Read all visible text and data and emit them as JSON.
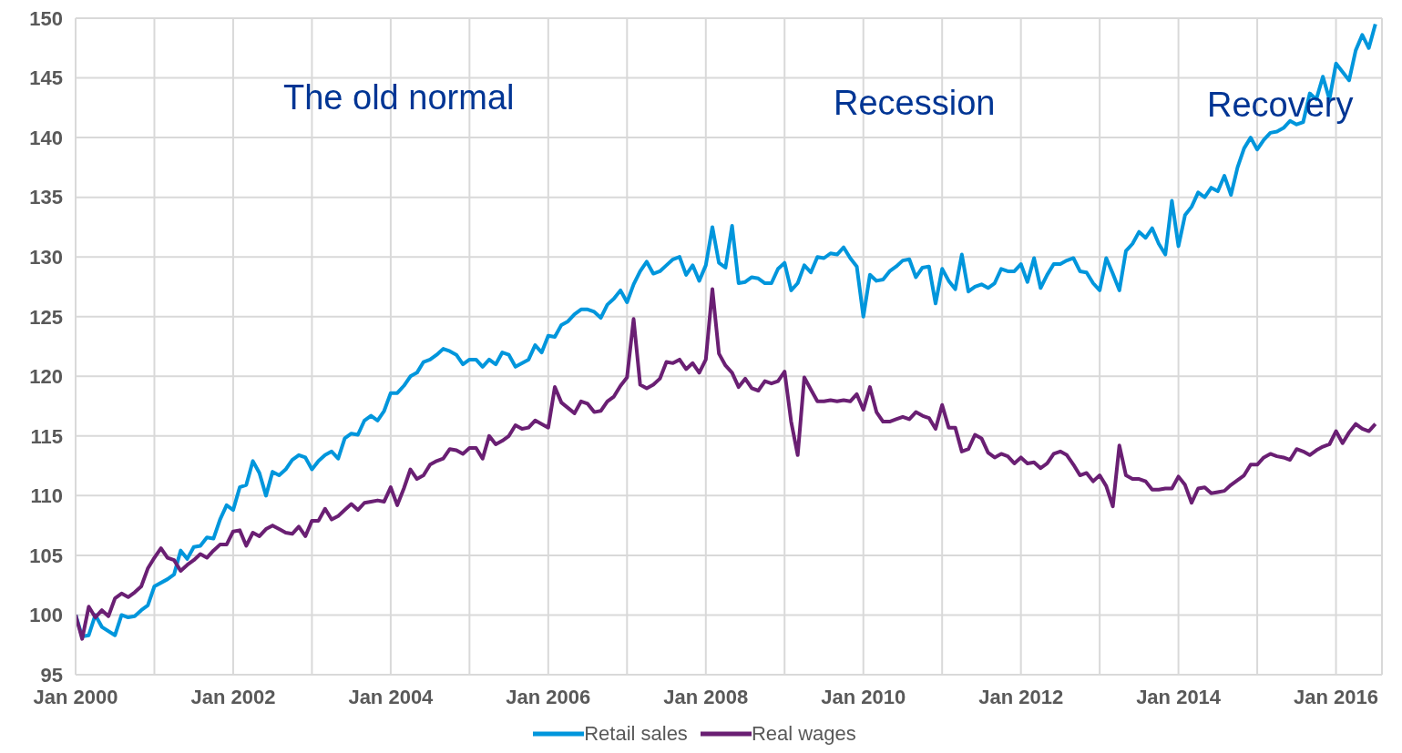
{
  "chart_data": {
    "type": "line",
    "grid": true,
    "legend": "bottom",
    "xlim": [
      "2000-01",
      "2016-08"
    ],
    "xticks": [
      {
        "value": "2000-01",
        "label": "Jan 2000"
      },
      {
        "value": "2001-01",
        "label": null
      },
      {
        "value": "2002-01",
        "label": "Jan 2002"
      },
      {
        "value": "2003-01",
        "label": null
      },
      {
        "value": "2004-01",
        "label": "Jan 2004"
      },
      {
        "value": "2005-01",
        "label": null
      },
      {
        "value": "2006-01",
        "label": "Jan 2006"
      },
      {
        "value": "2007-01",
        "label": null
      },
      {
        "value": "2008-01",
        "label": "Jan 2008"
      },
      {
        "value": "2009-01",
        "label": null
      },
      {
        "value": "2010-01",
        "label": "Jan 2010"
      },
      {
        "value": "2011-01",
        "label": null
      },
      {
        "value": "2012-01",
        "label": "Jan 2012"
      },
      {
        "value": "2013-01",
        "label": null
      },
      {
        "value": "2014-01",
        "label": "Jan 2014"
      },
      {
        "value": "2015-01",
        "label": null
      },
      {
        "value": "2016-01",
        "label": "Jan 2016"
      }
    ],
    "ylim": [
      95,
      150
    ],
    "yticks": [
      95,
      100,
      105,
      110,
      115,
      120,
      125,
      130,
      135,
      140,
      145,
      150
    ],
    "annotations": [
      "The old normal",
      "Recession",
      "Recovery"
    ],
    "series": [
      {
        "name": "Retail sales",
        "color": "#0096dc",
        "x": [
          "2000-01",
          "2000-02",
          "2000-03",
          "2000-04",
          "2000-05",
          "2000-07",
          "2000-08",
          "2000-09",
          "2000-10",
          "2000-11",
          "2000-12",
          "2001-01",
          "2001-03",
          "2001-04",
          "2001-05",
          "2001-06",
          "2001-07",
          "2001-08",
          "2001-09",
          "2001-10",
          "2001-11",
          "2001-12",
          "2002-01",
          "2002-02",
          "2002-03",
          "2002-04",
          "2002-05",
          "2002-06",
          "2002-07",
          "2002-08",
          "2002-09",
          "2002-10",
          "2002-11",
          "2002-12",
          "2003-01",
          "2003-02",
          "2003-03",
          "2003-04",
          "2003-05",
          "2003-06",
          "2003-07",
          "2003-08",
          "2003-09",
          "2003-10",
          "2003-11",
          "2003-12",
          "2004-01",
          "2004-02",
          "2004-03",
          "2004-04",
          "2004-05",
          "2004-06",
          "2004-07",
          "2004-08",
          "2004-09",
          "2004-10",
          "2004-11",
          "2004-12",
          "2005-01",
          "2005-02",
          "2005-03",
          "2005-04",
          "2005-05",
          "2005-06",
          "2005-07",
          "2005-08",
          "2005-10",
          "2005-11",
          "2005-12",
          "2006-01",
          "2006-02",
          "2006-03",
          "2006-04",
          "2006-05",
          "2006-06",
          "2006-07",
          "2006-08",
          "2006-09",
          "2006-10",
          "2006-11",
          "2006-12",
          "2007-01",
          "2007-02",
          "2007-03",
          "2007-04",
          "2007-05",
          "2007-06",
          "2007-07",
          "2007-08",
          "2007-09",
          "2007-10",
          "2007-11",
          "2007-12",
          "2008-01",
          "2008-02",
          "2008-03",
          "2008-04",
          "2008-05",
          "2008-06",
          "2008-07",
          "2008-08",
          "2008-09",
          "2008-10",
          "2008-11",
          "2008-12",
          "2009-01",
          "2009-02",
          "2009-03",
          "2009-04",
          "2009-05",
          "2009-06",
          "2009-07",
          "2009-08",
          "2009-09",
          "2009-10",
          "2009-11",
          "2009-12",
          "2010-01",
          "2010-02",
          "2010-03",
          "2010-04",
          "2010-05",
          "2010-06",
          "2010-07",
          "2010-08",
          "2010-09",
          "2010-10",
          "2010-11",
          "2010-12",
          "2011-01",
          "2011-02",
          "2011-03",
          "2011-04",
          "2011-05",
          "2011-06",
          "2011-07",
          "2011-08",
          "2011-09",
          "2011-10",
          "2011-11",
          "2011-12",
          "2012-01",
          "2012-02",
          "2012-03",
          "2012-04",
          "2012-05",
          "2012-06",
          "2012-07",
          "2012-08",
          "2012-09",
          "2012-10",
          "2012-11",
          "2012-12",
          "2013-01",
          "2013-02",
          "2013-03",
          "2013-04",
          "2013-05",
          "2013-06",
          "2013-07",
          "2013-08",
          "2013-09",
          "2013-10",
          "2013-11",
          "2013-12",
          "2014-01",
          "2014-02",
          "2014-03",
          "2014-04",
          "2014-05",
          "2014-06",
          "2014-07",
          "2014-08",
          "2014-09",
          "2014-10",
          "2014-11",
          "2014-12",
          "2015-01",
          "2015-02",
          "2015-03",
          "2015-04",
          "2015-05",
          "2015-06",
          "2015-07",
          "2015-08",
          "2015-09",
          "2015-10",
          "2015-11",
          "2015-12",
          "2016-01",
          "2016-02",
          "2016-03",
          "2016-04",
          "2016-05",
          "2016-06",
          "2016-07"
        ],
        "values": [
          100,
          98.2,
          98.3,
          100,
          99,
          98.3,
          100,
          99.8,
          99.9,
          100.4,
          100.8,
          102.4,
          103,
          103.4,
          105.4,
          104.7,
          105.7,
          105.8,
          106.5,
          106.4,
          108,
          109.2,
          108.8,
          110.7,
          110.9,
          112.9,
          111.9,
          110,
          112,
          111.7,
          112.2,
          113,
          113.4,
          113.2,
          112.2,
          112.9,
          113.4,
          113.7,
          113.1,
          114.8,
          115.2,
          115.1,
          116.3,
          116.7,
          116.3,
          117.1,
          118.6,
          118.6,
          119.2,
          120,
          120.3,
          121.2,
          121.4,
          121.8,
          122.3,
          122.1,
          121.8,
          121,
          121.4,
          121.4,
          120.8,
          121.4,
          121,
          122,
          121.8,
          120.8,
          121.4,
          122.6,
          122,
          123.4,
          123.3,
          124.3,
          124.6,
          125.2,
          125.6,
          125.6,
          125.4,
          124.9,
          126,
          126.5,
          127.2,
          126.2,
          127.7,
          128.8,
          129.6,
          128.6,
          128.8,
          129.3,
          129.8,
          130,
          128.5,
          129.3,
          128,
          129.3,
          132.5,
          129.5,
          129.1,
          132.6,
          127.8,
          127.9,
          128.3,
          128.2,
          127.8,
          127.8,
          129,
          129.5,
          127.2,
          127.8,
          129.3,
          128.7,
          130,
          129.9,
          130.3,
          130.2,
          130.8,
          129.9,
          129.2,
          125,
          128.5,
          128,
          128.1,
          128.8,
          129.2,
          129.7,
          129.8,
          128.3,
          129.1,
          129.2,
          126.1,
          129,
          128,
          127.3,
          130.2,
          127.1,
          127.5,
          127.7,
          127.4,
          127.8,
          129,
          128.8,
          128.8,
          129.4,
          127.9,
          129.9,
          127.4,
          128.5,
          129.4,
          129.4,
          129.7,
          129.9,
          128.8,
          128.7,
          127.8,
          127.2,
          129.9,
          128.6,
          127.2,
          130.5,
          131.1,
          132.1,
          131.6,
          132.4,
          131.1,
          130.2,
          134.7,
          130.9,
          133.5,
          134.2,
          135.4,
          135,
          135.8,
          135.5,
          136.8,
          135.2,
          137.5,
          139.1,
          140,
          139,
          139.8,
          140.4,
          140.5,
          140.8,
          141.4,
          141.1,
          141.3,
          143.7,
          143.2,
          145.1,
          143.2,
          146.2,
          145.5,
          144.8,
          147.3,
          148.6,
          147.5,
          149.5
        ]
      },
      {
        "name": "Real wages",
        "color": "#6a1f73",
        "x": [
          "2000-01",
          "2000-02",
          "2000-03",
          "2000-04",
          "2000-05",
          "2000-06",
          "2000-07",
          "2000-08",
          "2000-09",
          "2000-10",
          "2000-11",
          "2000-12",
          "2001-01",
          "2001-02",
          "2001-03",
          "2001-04",
          "2001-05",
          "2001-06",
          "2001-07",
          "2001-08",
          "2001-09",
          "2001-10",
          "2001-11",
          "2001-12",
          "2002-01",
          "2002-02",
          "2002-03",
          "2002-04",
          "2002-05",
          "2002-06",
          "2002-07",
          "2002-08",
          "2002-09",
          "2002-10",
          "2002-11",
          "2002-12",
          "2003-01",
          "2003-02",
          "2003-03",
          "2003-04",
          "2003-05",
          "2003-06",
          "2003-07",
          "2003-08",
          "2003-09",
          "2003-10",
          "2003-11",
          "2003-12",
          "2004-01",
          "2004-02",
          "2004-03",
          "2004-04",
          "2004-05",
          "2004-06",
          "2004-07",
          "2004-08",
          "2004-09",
          "2004-10",
          "2004-11",
          "2004-12",
          "2005-01",
          "2005-02",
          "2005-03",
          "2005-04",
          "2005-05",
          "2005-06",
          "2005-07",
          "2005-08",
          "2005-09",
          "2005-10",
          "2005-11",
          "2005-12",
          "2006-01",
          "2006-02",
          "2006-03",
          "2006-05",
          "2006-06",
          "2006-07",
          "2006-08",
          "2006-09",
          "2006-10",
          "2006-11",
          "2006-12",
          "2007-01",
          "2007-02",
          "2007-03",
          "2007-04",
          "2007-05",
          "2007-06",
          "2007-07",
          "2007-08",
          "2007-09",
          "2007-10",
          "2007-11",
          "2007-12",
          "2008-01",
          "2008-02",
          "2008-03",
          "2008-04",
          "2008-05",
          "2008-06",
          "2008-07",
          "2008-08",
          "2008-09",
          "2008-10",
          "2008-11",
          "2008-12",
          "2009-01",
          "2009-02",
          "2009-03",
          "2009-04",
          "2009-05",
          "2009-06",
          "2009-07",
          "2009-08",
          "2009-09",
          "2009-10",
          "2009-11",
          "2009-12",
          "2010-01",
          "2010-02",
          "2010-03",
          "2010-04",
          "2010-05",
          "2010-06",
          "2010-07",
          "2010-08",
          "2010-09",
          "2010-10",
          "2010-11",
          "2010-12",
          "2011-01",
          "2011-02",
          "2011-03",
          "2011-04",
          "2011-05",
          "2011-06",
          "2011-07",
          "2011-08",
          "2011-09",
          "2011-10",
          "2011-11",
          "2011-12",
          "2012-01",
          "2012-02",
          "2012-03",
          "2012-04",
          "2012-05",
          "2012-06",
          "2012-07",
          "2012-08",
          "2012-09",
          "2012-10",
          "2012-11",
          "2012-12",
          "2013-01",
          "2013-02",
          "2013-03",
          "2013-04",
          "2013-05",
          "2013-06",
          "2013-07",
          "2013-08",
          "2013-09",
          "2013-10",
          "2013-11",
          "2013-12",
          "2014-01",
          "2014-02",
          "2014-03",
          "2014-04",
          "2014-05",
          "2014-06",
          "2014-07",
          "2014-08",
          "2014-09",
          "2014-10",
          "2014-11",
          "2014-12",
          "2015-01",
          "2015-02",
          "2015-03",
          "2015-04",
          "2015-05",
          "2015-06",
          "2015-07",
          "2015-08",
          "2015-09",
          "2015-10",
          "2015-11",
          "2015-12",
          "2016-01",
          "2016-02",
          "2016-03",
          "2016-04",
          "2016-05",
          "2016-06",
          "2016-07"
        ],
        "values": [
          100,
          98,
          100.7,
          99.8,
          100.4,
          99.9,
          101.4,
          101.8,
          101.5,
          101.9,
          102.4,
          103.9,
          104.8,
          105.6,
          104.8,
          104.6,
          103.7,
          104.2,
          104.6,
          105.1,
          104.8,
          105.4,
          105.9,
          105.9,
          107,
          107.1,
          105.8,
          106.9,
          106.6,
          107.2,
          107.5,
          107.2,
          106.9,
          106.8,
          107.4,
          106.6,
          107.9,
          107.9,
          108.9,
          108,
          108.3,
          108.8,
          109.3,
          108.8,
          109.4,
          109.5,
          109.6,
          109.5,
          110.7,
          109.2,
          110.6,
          112.2,
          111.4,
          111.7,
          112.6,
          112.9,
          113.1,
          113.9,
          113.8,
          113.5,
          114,
          114,
          113.1,
          115,
          114.3,
          114.6,
          115,
          115.9,
          115.6,
          115.7,
          116.3,
          116,
          115.7,
          119.1,
          117.8,
          116.9,
          117.9,
          117.7,
          117,
          117.1,
          117.9,
          118.3,
          119.2,
          119.9,
          124.8,
          119.3,
          119,
          119.3,
          119.8,
          121.2,
          121.1,
          121.4,
          120.6,
          121.1,
          120.3,
          121.4,
          127.3,
          121.9,
          120.9,
          120.3,
          119.1,
          119.8,
          119,
          118.8,
          119.6,
          119.4,
          119.6,
          120.4,
          116.2,
          113.4,
          119.9,
          118.9,
          117.9,
          117.9,
          118,
          117.9,
          118,
          117.9,
          118.5,
          117.2,
          119.1,
          117,
          116.2,
          116.2,
          116.4,
          116.6,
          116.4,
          117,
          116.7,
          116.5,
          115.6,
          117.6,
          115.7,
          115.7,
          113.7,
          113.9,
          115.1,
          114.8,
          113.6,
          113.2,
          113.5,
          113.3,
          112.7,
          113.2,
          112.7,
          112.8,
          112.3,
          112.7,
          113.5,
          113.7,
          113.4,
          112.6,
          111.7,
          111.9,
          111.2,
          111.7,
          110.8,
          109.1,
          114.2,
          111.7,
          111.4,
          111.4,
          111.2,
          110.5,
          110.5,
          110.6,
          110.6,
          111.6,
          110.9,
          109.4,
          110.6,
          110.7,
          110.2,
          110.3,
          110.4,
          110.9,
          111.3,
          111.7,
          112.6,
          112.6,
          113.2,
          113.5,
          113.3,
          113.2,
          113,
          113.9,
          113.7,
          113.4,
          113.8,
          114.1,
          114.3,
          115.4,
          114.4,
          115.3,
          116,
          115.6,
          115.4,
          116
        ]
      }
    ]
  }
}
